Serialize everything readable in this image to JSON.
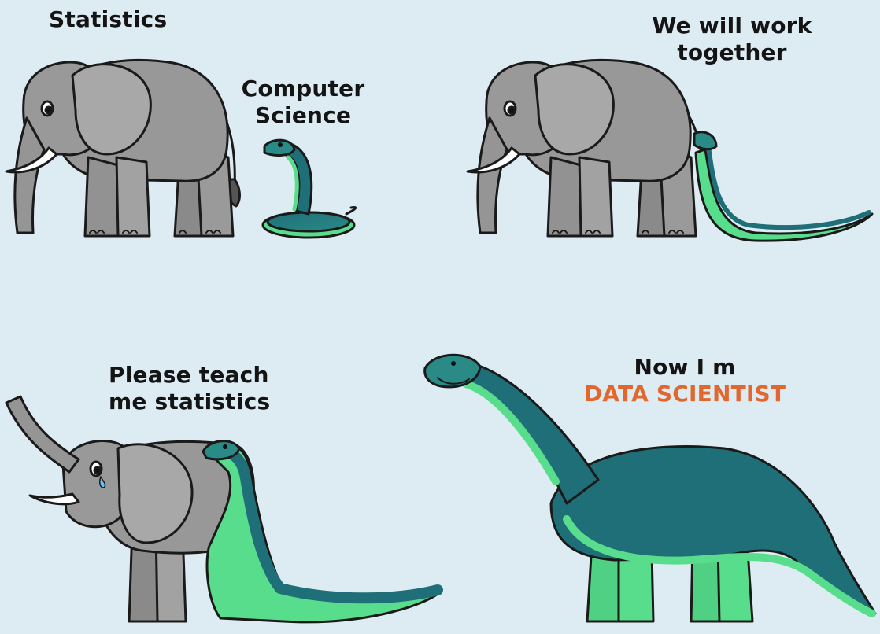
{
  "panels": {
    "p1": {
      "elephant_label": "Statistics",
      "snake_label_line1": "Computer",
      "snake_label_line2": "Science"
    },
    "p2": {
      "caption_line1": "We will work",
      "caption_line2": "together"
    },
    "p3": {
      "caption_line1": "Please teach",
      "caption_line2": "me statistics"
    },
    "p4": {
      "caption_line1": "Now I m",
      "caption_line2": "DATA SCIENTIST"
    }
  },
  "colors": {
    "background": "#ddebf2",
    "elephant": "#8f8f8f",
    "elephant_dark": "#6d6d6d",
    "snake_dark": "#1f6f78",
    "snake_light": "#58dd8c",
    "accent_text": "#e2672f"
  }
}
